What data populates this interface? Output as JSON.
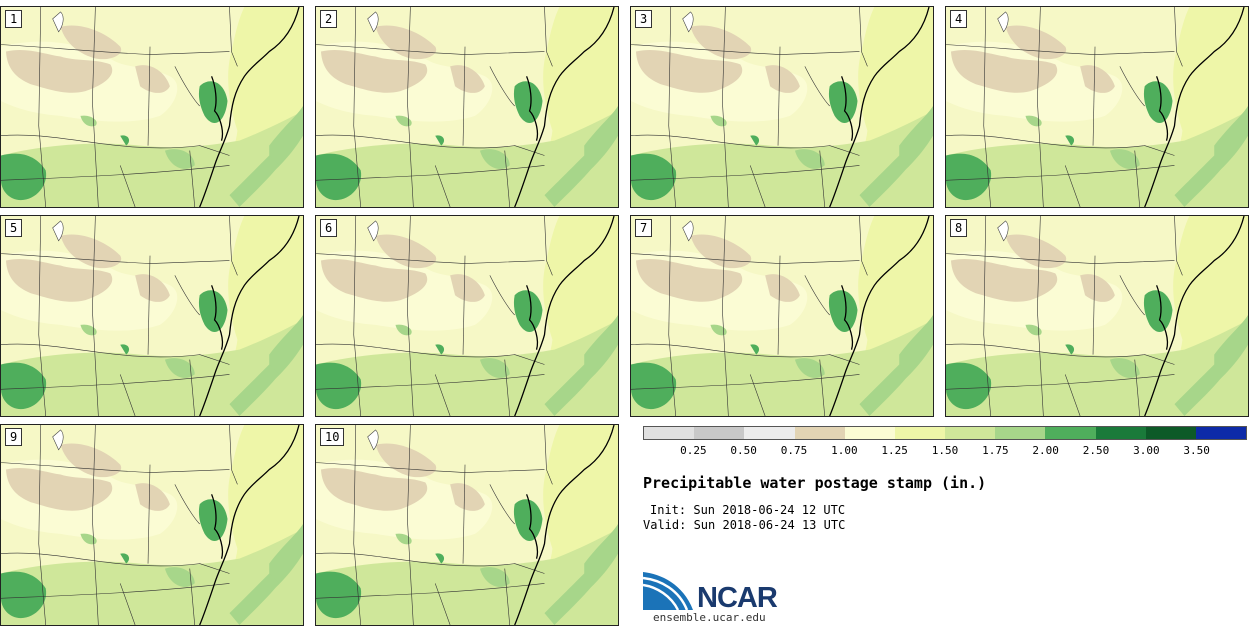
{
  "panels": [
    {
      "label": "1"
    },
    {
      "label": "2"
    },
    {
      "label": "3"
    },
    {
      "label": "4"
    },
    {
      "label": "5"
    },
    {
      "label": "6"
    },
    {
      "label": "7"
    },
    {
      "label": "8"
    },
    {
      "label": "9"
    },
    {
      "label": "10"
    }
  ],
  "legend": {
    "colors": [
      "#e0e0e0",
      "#c8c8c8",
      "#ececec",
      "#e2d4b4",
      "#fbfcd4",
      "#eef6a8",
      "#cfe79a",
      "#a7d68a",
      "#4fae5c",
      "#1a7a3a",
      "#0d5a28",
      "#0d2aa8"
    ],
    "ticks": [
      "0.25",
      "0.50",
      "0.75",
      "1.00",
      "1.25",
      "1.50",
      "1.75",
      "2.00",
      "2.50",
      "3.00",
      "3.50"
    ]
  },
  "title": "Precipitable water postage stamp (in.)",
  "init_text": "Init: Sun 2018-06-24 12 UTC",
  "valid_text": "Valid: Sun 2018-06-24 13 UTC",
  "logo": {
    "name": "NCAR",
    "url": "ensemble.ucar.edu"
  }
}
